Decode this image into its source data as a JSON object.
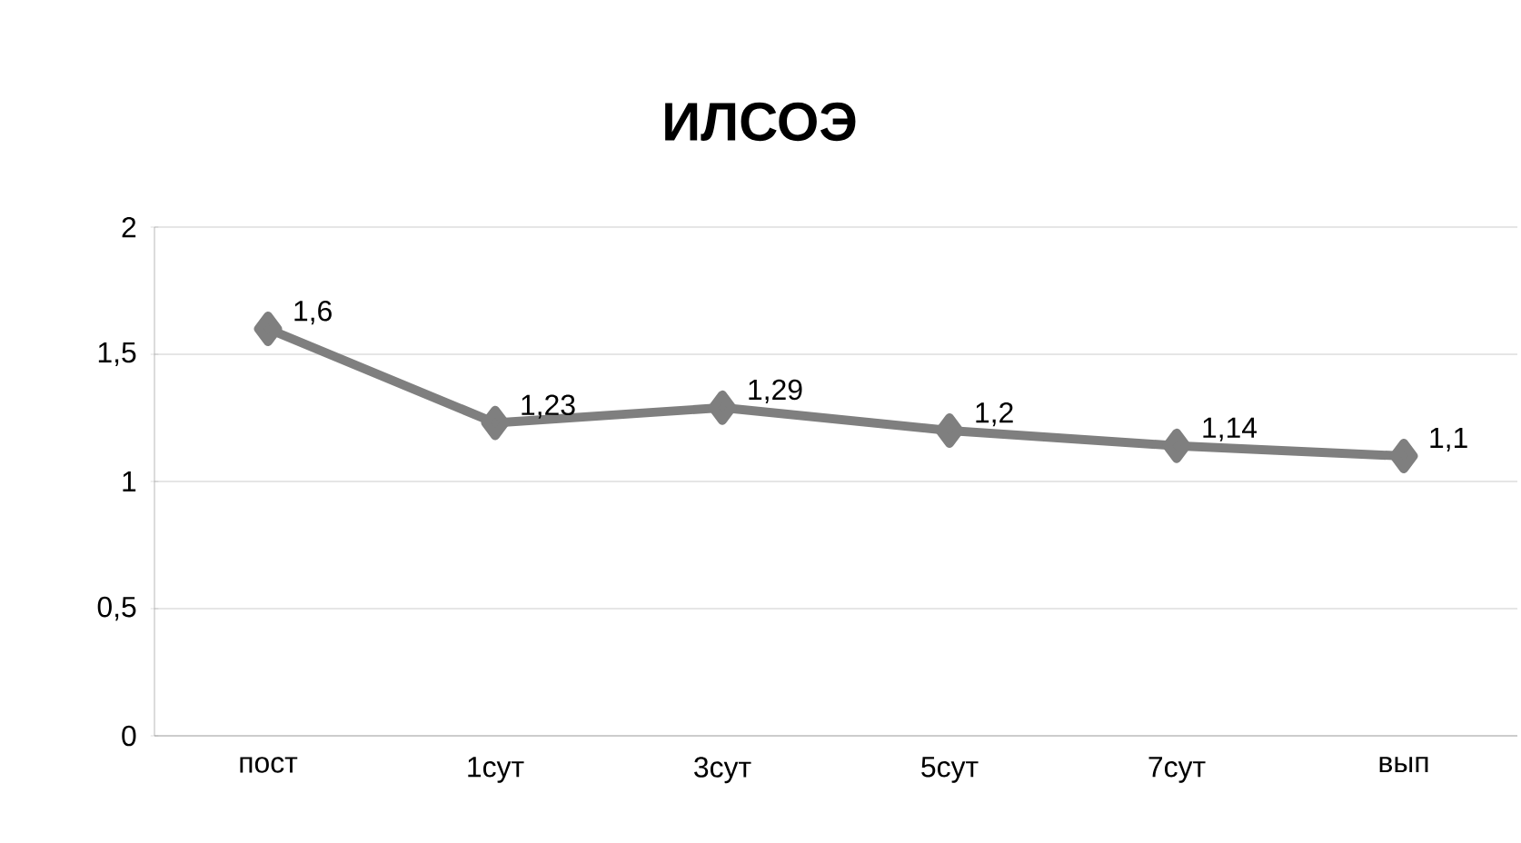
{
  "chart_data": {
    "type": "line",
    "title": "ИЛСОЭ",
    "categories": [
      "пост",
      "1сут",
      "3сут",
      "5сут",
      "7сут",
      "вып"
    ],
    "series": [
      {
        "color": "#7f7f7f",
        "values": [
          1.6,
          1.23,
          1.29,
          1.2,
          1.14,
          1.1
        ],
        "value_labels": [
          "1,6",
          "1,23",
          "1,29",
          "1,2",
          "1,14",
          "1,1"
        ]
      }
    ],
    "ylim": [
      0,
      2
    ],
    "yticks": [
      0,
      {
        "value": 0.5,
        "label": "0,5"
      },
      1,
      {
        "value": 1.5,
        "label": "1,5"
      },
      2
    ],
    "grid": "y",
    "marker": "diamond",
    "line_style": "solid"
  }
}
